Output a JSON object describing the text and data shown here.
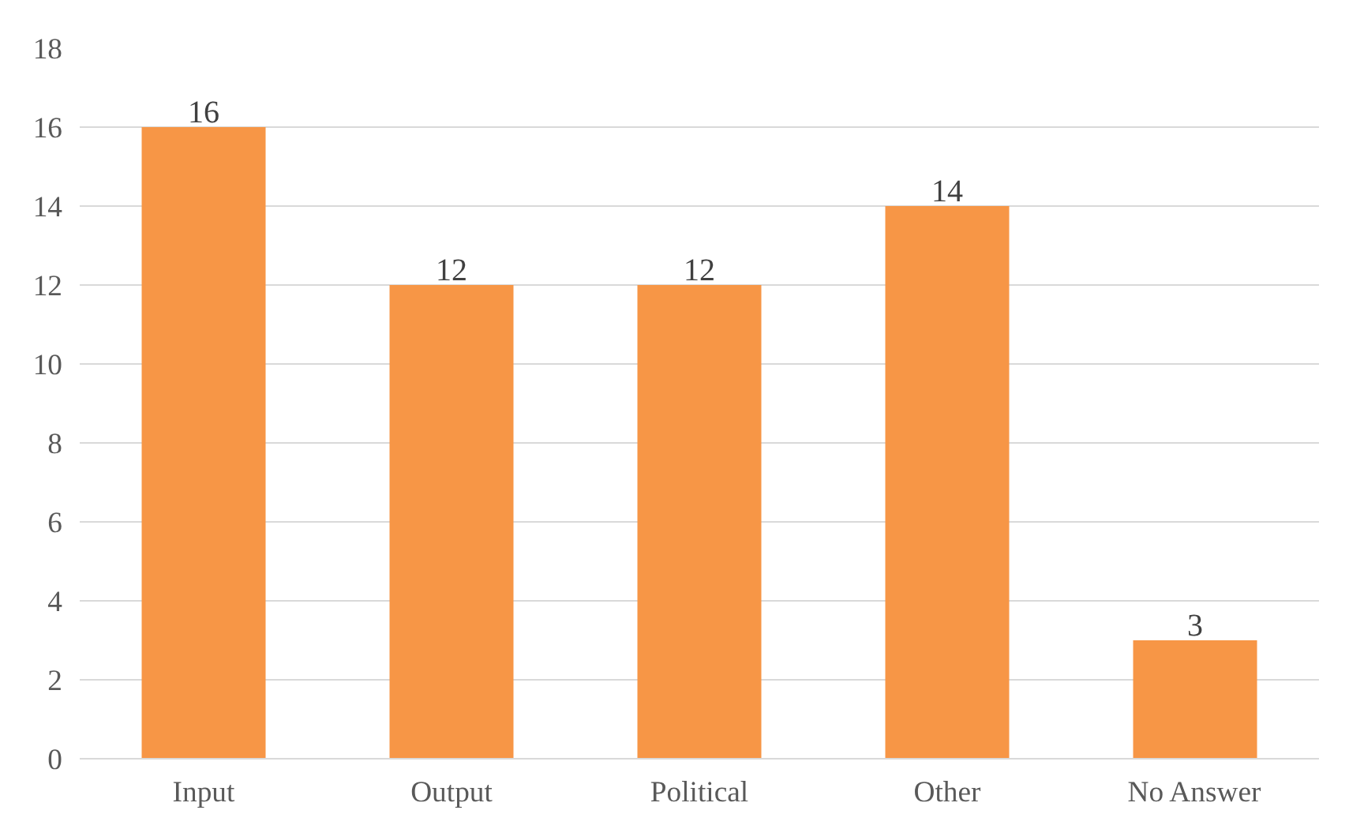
{
  "chart_data": {
    "type": "bar",
    "categories": [
      "Input",
      "Output",
      "Political",
      "Other",
      "No Answer"
    ],
    "values": [
      16,
      12,
      12,
      14,
      3
    ],
    "color": "#f79646",
    "ylim": [
      0,
      18
    ],
    "yticks": [
      0,
      2,
      4,
      6,
      8,
      10,
      12,
      14,
      16,
      18
    ],
    "grid": "y",
    "data_labels": true
  }
}
